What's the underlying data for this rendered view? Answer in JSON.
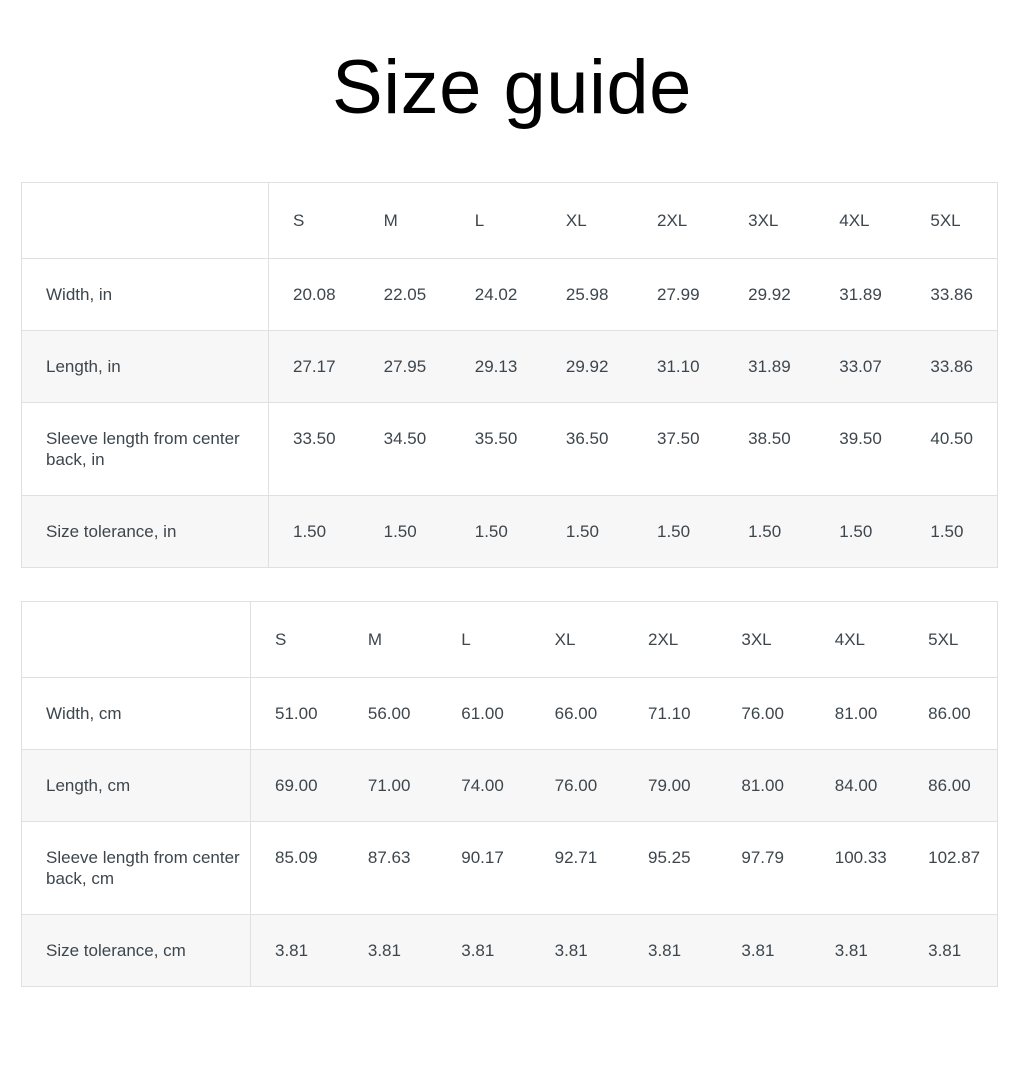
{
  "page": {
    "title": "Size guide"
  },
  "colors": {
    "title_text": "#000000",
    "table_text": "#3d464d",
    "border": "#e0e0e0",
    "alt_row_bg": "#f7f7f7",
    "page_bg": "#ffffff"
  },
  "tables": [
    {
      "name": "inches",
      "columns": [
        "S",
        "M",
        "L",
        "XL",
        "2XL",
        "3XL",
        "4XL",
        "5XL"
      ],
      "rows": [
        {
          "label": "Width, in",
          "values": [
            "20.08",
            "22.05",
            "24.02",
            "25.98",
            "27.99",
            "29.92",
            "31.89",
            "33.86"
          ]
        },
        {
          "label": "Length, in",
          "values": [
            "27.17",
            "27.95",
            "29.13",
            "29.92",
            "31.10",
            "31.89",
            "33.07",
            "33.86"
          ]
        },
        {
          "label": "Sleeve length from center back, in",
          "values": [
            "33.50",
            "34.50",
            "35.50",
            "36.50",
            "37.50",
            "38.50",
            "39.50",
            "40.50"
          ]
        },
        {
          "label": "Size tolerance, in",
          "values": [
            "1.50",
            "1.50",
            "1.50",
            "1.50",
            "1.50",
            "1.50",
            "1.50",
            "1.50"
          ]
        }
      ]
    },
    {
      "name": "centimeters",
      "columns": [
        "S",
        "M",
        "L",
        "XL",
        "2XL",
        "3XL",
        "4XL",
        "5XL"
      ],
      "rows": [
        {
          "label": "Width, cm",
          "values": [
            "51.00",
            "56.00",
            "61.00",
            "66.00",
            "71.10",
            "76.00",
            "81.00",
            "86.00"
          ]
        },
        {
          "label": "Length, cm",
          "values": [
            "69.00",
            "71.00",
            "74.00",
            "76.00",
            "79.00",
            "81.00",
            "84.00",
            "86.00"
          ]
        },
        {
          "label": "Sleeve length from center back, cm",
          "values": [
            "85.09",
            "87.63",
            "90.17",
            "92.71",
            "95.25",
            "97.79",
            "100.33",
            "102.87"
          ]
        },
        {
          "label": "Size tolerance, cm",
          "values": [
            "3.81",
            "3.81",
            "3.81",
            "3.81",
            "3.81",
            "3.81",
            "3.81",
            "3.81"
          ]
        }
      ]
    }
  ]
}
